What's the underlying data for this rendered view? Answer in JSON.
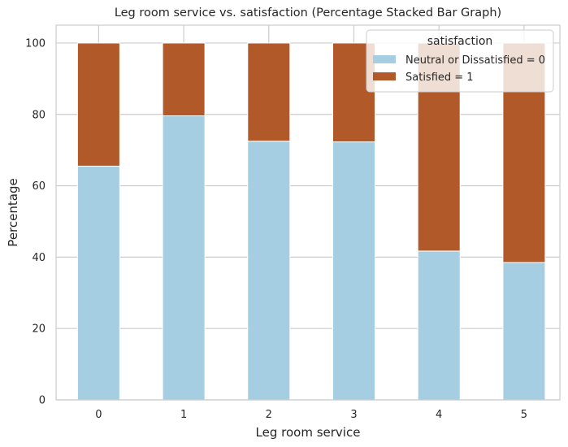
{
  "chart_data": {
    "type": "bar",
    "stacked": true,
    "title": "Leg room service vs. satisfaction (Percentage Stacked Bar Graph)",
    "xlabel": "Leg room service",
    "ylabel": "Percentage",
    "categories": [
      "0",
      "1",
      "2",
      "3",
      "4",
      "5"
    ],
    "ylim": [
      0,
      105
    ],
    "yticks": [
      0,
      20,
      40,
      60,
      80,
      100
    ],
    "grid": true,
    "legend": {
      "title": "satisfaction",
      "placement": "top-right"
    },
    "series": [
      {
        "name": "Neutral or Dissatisfied = 0",
        "color": "#a6cee3",
        "values": [
          65.5,
          79.6,
          72.5,
          72.3,
          41.7,
          38.5
        ]
      },
      {
        "name": "Satisfied = 1",
        "color": "#b15928",
        "values": [
          34.5,
          20.4,
          27.5,
          27.7,
          58.3,
          61.5
        ]
      }
    ]
  }
}
